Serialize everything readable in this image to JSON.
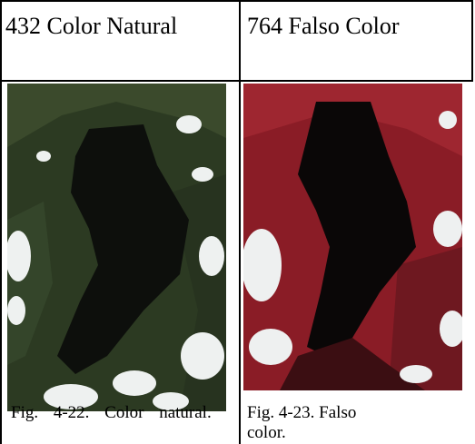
{
  "table": {
    "header": [
      "432 Color Natural",
      "764 Falso Color"
    ],
    "captions": [
      "Fig. 4-22. Color natural.",
      "Fig. 4-23. Falso color."
    ]
  }
}
